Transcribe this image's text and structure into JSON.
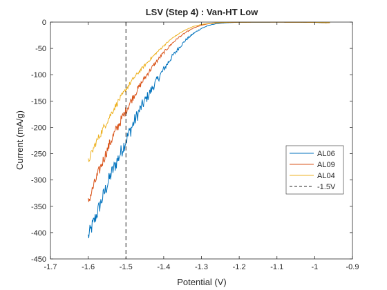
{
  "chart_data": {
    "type": "line",
    "title": "LSV (Step 4) : Van-HT Low",
    "xlabel": "Potential (V)",
    "ylabel": "Current (mA/g)",
    "xlim": [
      -1.7,
      -0.9
    ],
    "ylim": [
      -450,
      0
    ],
    "xticks": [
      -1.7,
      -1.6,
      -1.5,
      -1.4,
      -1.3,
      -1.2,
      -1.1,
      -1.0,
      -0.9
    ],
    "xtick_labels": [
      "-1.7",
      "-1.6",
      "-1.5",
      "-1.4",
      "-1.3",
      "-1.2",
      "-1.1",
      "-1",
      "-0.9"
    ],
    "yticks": [
      0,
      -50,
      -100,
      -150,
      -200,
      -250,
      -300,
      -350,
      -400,
      -450
    ],
    "ytick_labels": [
      "0",
      "-50",
      "-100",
      "-150",
      "-200",
      "-250",
      "-300",
      "-350",
      "-400",
      "-450"
    ],
    "grid": false,
    "legend_position": "right",
    "series": [
      {
        "name": "AL06",
        "color": "#0072BD",
        "noise": 14,
        "x": [
          -1.6,
          -1.58,
          -1.56,
          -1.54,
          -1.52,
          -1.5,
          -1.48,
          -1.46,
          -1.44,
          -1.42,
          -1.4,
          -1.38,
          -1.36,
          -1.34,
          -1.32,
          -1.3,
          -1.28,
          -1.26,
          -1.24,
          -1.22,
          -1.2,
          -1.15,
          -1.1,
          -1.05,
          -1.0,
          -0.97,
          -0.96
        ],
        "y": [
          -408,
          -370,
          -330,
          -290,
          -258,
          -225,
          -192,
          -162,
          -138,
          -113,
          -90,
          -68,
          -49,
          -33,
          -21,
          -12,
          -6,
          -3,
          -1.5,
          -0.8,
          -0.5,
          -0.3,
          -0.2,
          -0.3,
          -0.6,
          -1.5,
          -1
        ]
      },
      {
        "name": "AL09",
        "color": "#D95319",
        "noise": 10,
        "x": [
          -1.6,
          -1.58,
          -1.56,
          -1.54,
          -1.52,
          -1.5,
          -1.48,
          -1.46,
          -1.44,
          -1.42,
          -1.4,
          -1.38,
          -1.36,
          -1.34,
          -1.32,
          -1.3,
          -1.28,
          -1.26,
          -1.24,
          -1.22,
          -1.2,
          -1.15,
          -1.1,
          -1.05,
          -1.0,
          -0.97,
          -0.96
        ],
        "y": [
          -342,
          -300,
          -262,
          -226,
          -196,
          -168,
          -141,
          -117,
          -95,
          -76,
          -58,
          -42,
          -29,
          -19,
          -11,
          -6,
          -3,
          -1.5,
          -0.8,
          -0.5,
          -0.3,
          -0.2,
          -0.2,
          -0.3,
          -0.5,
          -1.2,
          -1
        ]
      },
      {
        "name": "AL04",
        "color": "#EDB120",
        "noise": 7,
        "x": [
          -1.6,
          -1.58,
          -1.56,
          -1.54,
          -1.52,
          -1.5,
          -1.48,
          -1.46,
          -1.44,
          -1.42,
          -1.4,
          -1.38,
          -1.36,
          -1.34,
          -1.32,
          -1.3,
          -1.28,
          -1.26,
          -1.24,
          -1.22,
          -1.2,
          -1.15,
          -1.1,
          -1.05,
          -1.0,
          -0.97,
          -0.96
        ],
        "y": [
          -265,
          -230,
          -202,
          -175,
          -150,
          -128,
          -107,
          -90,
          -74,
          -59,
          -45,
          -32,
          -22,
          -14,
          -8,
          -4.5,
          -2.5,
          -1.2,
          -0.7,
          -0.4,
          -0.3,
          -0.2,
          -0.2,
          -0.3,
          -0.5,
          -1,
          -1
        ]
      }
    ],
    "reference_lines": [
      {
        "name": "-1.5V",
        "orientation": "vertical",
        "x": -1.5,
        "color": "#262626",
        "style": "dashed"
      }
    ]
  }
}
